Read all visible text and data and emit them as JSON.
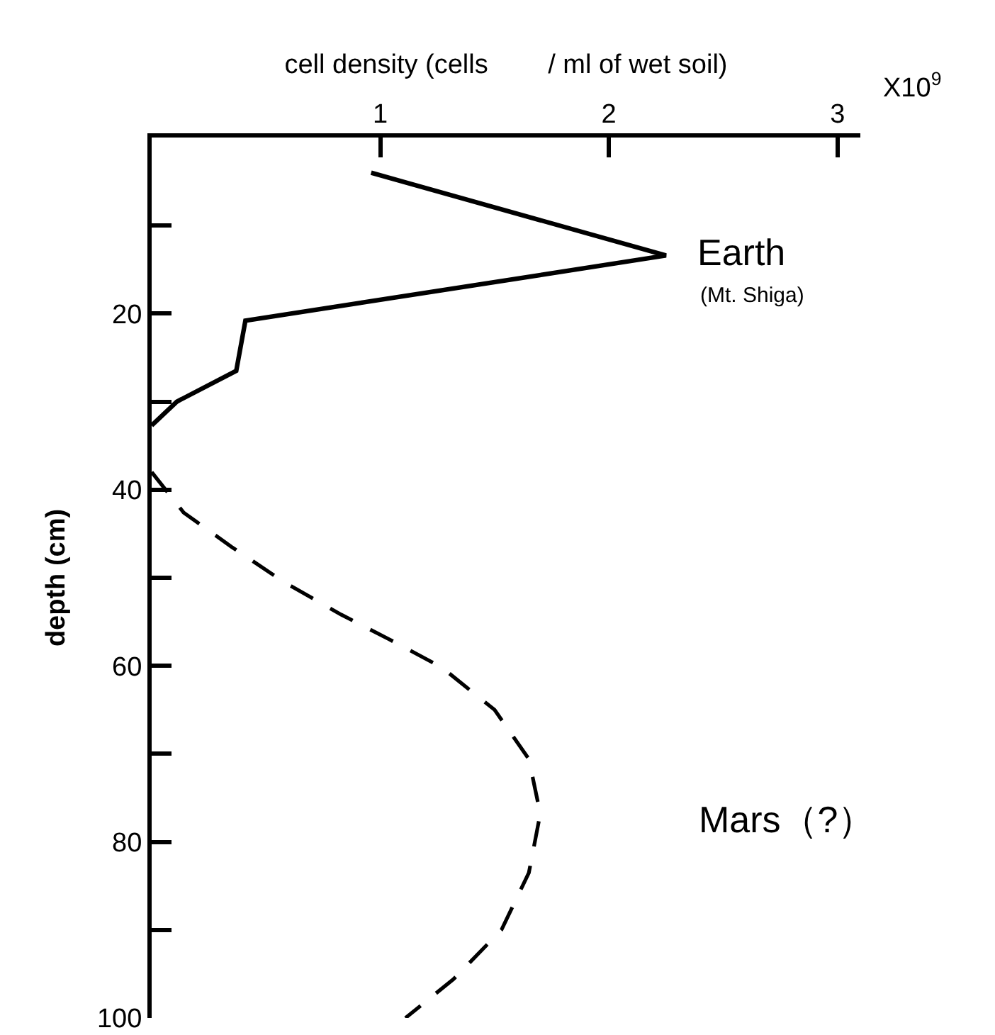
{
  "chart_data": {
    "type": "line",
    "xlabel": "cell density (cells        / ml of wet soil)",
    "ylabel": "depth (cm)",
    "xlim": [
      0,
      3.1
    ],
    "xticks": [
      1,
      2,
      3
    ],
    "ylim": [
      100,
      0
    ],
    "yticks": [
      {
        "value": 10,
        "label": null
      },
      20,
      {
        "value": 30,
        "label": null
      },
      40,
      {
        "value": 50,
        "label": null
      },
      60,
      {
        "value": 70,
        "label": null
      },
      80,
      {
        "value": 90,
        "label": null
      },
      100
    ],
    "grid": false,
    "legend": false,
    "marker": "none",
    "series": [
      {
        "name": "Earth",
        "color": "#000000",
        "line_style": "solid",
        "x": [
          0.96,
          2.25,
          0.41,
          0.37,
          0.11,
          0
        ],
        "values": [
          4,
          13.4,
          20.8,
          26.5,
          30,
          32.7
        ]
      },
      {
        "name": "Mars（?）",
        "color": "#000000",
        "line_style": "dashed",
        "x": [
          0,
          0.14,
          0.35,
          0.58,
          0.83,
          1.04,
          1.27,
          1.5,
          1.65,
          1.7,
          1.65,
          1.53,
          1.32,
          1.11
        ],
        "values": [
          38,
          42.6,
          46.5,
          50.5,
          54.2,
          57,
          60.2,
          65,
          70.6,
          76.8,
          83.5,
          90,
          95.6,
          100
        ]
      }
    ],
    "annotations": [
      "(Mt. Shiga)",
      "X10$^{9}$"
    ]
  }
}
